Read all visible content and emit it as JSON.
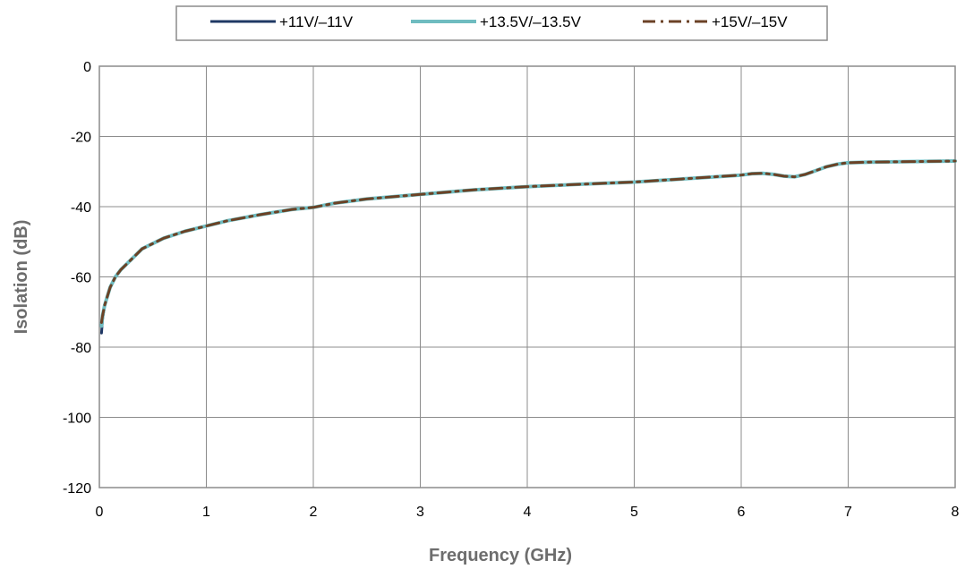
{
  "chart_data": {
    "type": "line",
    "title": "",
    "xlabel": "Frequency (GHz)",
    "ylabel": "Isolation (dB)",
    "xlim": [
      0,
      8
    ],
    "ylim": [
      -120,
      0
    ],
    "xticks": [
      "0",
      "1",
      "2",
      "3",
      "4",
      "5",
      "6",
      "7",
      "8"
    ],
    "yticks": [
      "0",
      "-20",
      "-40",
      "-60",
      "-80",
      "-100",
      "-120"
    ],
    "grid": true,
    "legend_position": "top",
    "series": [
      {
        "name": "+11V/–11V",
        "color": "#1f3864",
        "style": "solid",
        "x": [
          0.02,
          0.03,
          0.05,
          0.08,
          0.1,
          0.15,
          0.2,
          0.3,
          0.4,
          0.5,
          0.6,
          0.8,
          1.0,
          1.2,
          1.5,
          1.8,
          2.0,
          2.2,
          2.5,
          3.0,
          3.5,
          4.0,
          4.5,
          5.0,
          5.5,
          6.0,
          6.1,
          6.2,
          6.3,
          6.4,
          6.5,
          6.6,
          6.7,
          6.8,
          6.9,
          7.0,
          7.2,
          7.5,
          8.0
        ],
        "y": [
          -76,
          -72,
          -68,
          -65,
          -63,
          -60,
          -58,
          -55,
          -52,
          -50.5,
          -49,
          -47,
          -45.5,
          -44,
          -42.3,
          -40.8,
          -40.2,
          -39,
          -37.8,
          -36.5,
          -35.2,
          -34.3,
          -33.6,
          -33,
          -32,
          -31,
          -30.6,
          -30.5,
          -30.8,
          -31.3,
          -31.5,
          -30.8,
          -29.7,
          -28.6,
          -27.9,
          -27.5,
          -27.3,
          -27.2,
          -27
        ]
      },
      {
        "name": "+13.5V/–13.5V",
        "color": "#6fbcc0",
        "style": "solid",
        "x": [
          0.02,
          0.03,
          0.05,
          0.08,
          0.1,
          0.15,
          0.2,
          0.3,
          0.4,
          0.5,
          0.6,
          0.8,
          1.0,
          1.2,
          1.5,
          1.8,
          2.0,
          2.2,
          2.5,
          3.0,
          3.5,
          4.0,
          4.5,
          5.0,
          5.5,
          6.0,
          6.1,
          6.2,
          6.3,
          6.4,
          6.5,
          6.6,
          6.7,
          6.8,
          6.9,
          7.0,
          7.2,
          7.5,
          8.0
        ],
        "y": [
          -74,
          -71,
          -68,
          -65,
          -63,
          -60,
          -58,
          -55,
          -52,
          -50.5,
          -49,
          -47,
          -45.5,
          -44,
          -42.3,
          -40.8,
          -40.2,
          -39,
          -37.8,
          -36.5,
          -35.2,
          -34.3,
          -33.6,
          -33,
          -32,
          -31,
          -30.6,
          -30.5,
          -30.8,
          -31.3,
          -31.5,
          -30.8,
          -29.7,
          -28.6,
          -27.9,
          -27.5,
          -27.3,
          -27.2,
          -27
        ]
      },
      {
        "name": "+15V/–15V",
        "color": "#6b4226",
        "style": "dashdot",
        "x": [
          0.02,
          0.03,
          0.05,
          0.08,
          0.1,
          0.15,
          0.2,
          0.3,
          0.4,
          0.5,
          0.6,
          0.8,
          1.0,
          1.2,
          1.5,
          1.8,
          2.0,
          2.2,
          2.5,
          3.0,
          3.5,
          4.0,
          4.5,
          5.0,
          5.5,
          6.0,
          6.1,
          6.2,
          6.3,
          6.4,
          6.5,
          6.6,
          6.7,
          6.8,
          6.9,
          7.0,
          7.2,
          7.5,
          8.0
        ],
        "y": [
          -73,
          -71,
          -68,
          -65,
          -63,
          -60,
          -58,
          -55,
          -52,
          -50.5,
          -49,
          -47,
          -45.5,
          -44,
          -42.3,
          -40.8,
          -40.2,
          -39,
          -37.8,
          -36.5,
          -35.2,
          -34.3,
          -33.6,
          -33,
          -32,
          -31,
          -30.6,
          -30.5,
          -30.8,
          -31.3,
          -31.5,
          -30.8,
          -29.7,
          -28.6,
          -27.9,
          -27.5,
          -27.3,
          -27.2,
          -27
        ]
      }
    ]
  }
}
